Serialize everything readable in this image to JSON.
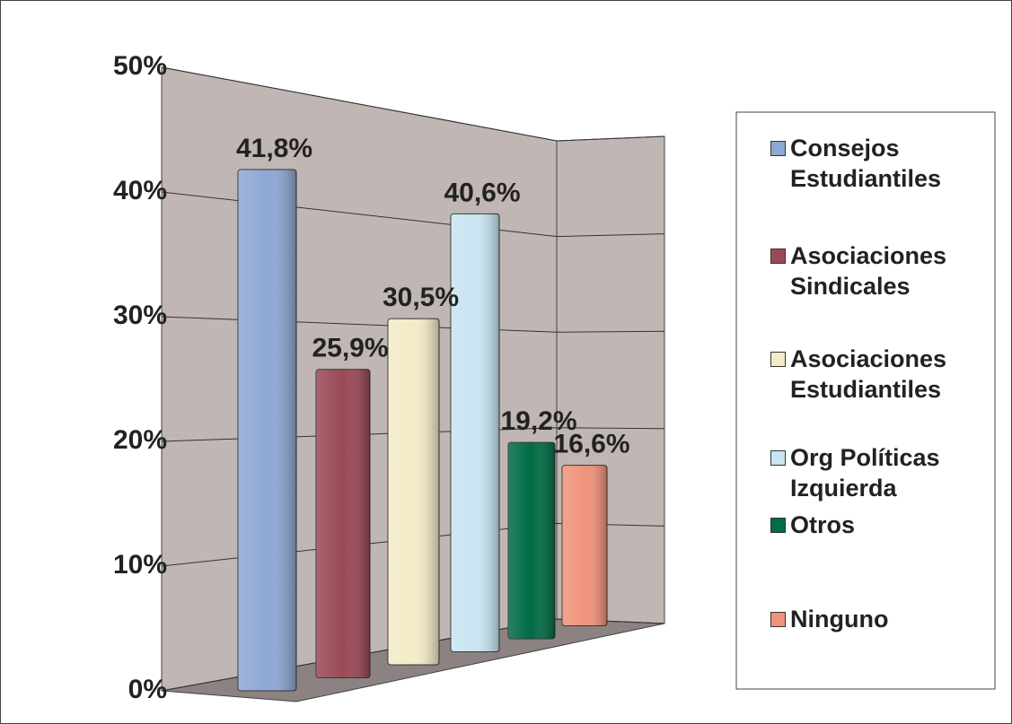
{
  "chart_data": {
    "type": "bar3d",
    "categories": [
      "Consejos Estudiantiles",
      "Asociaciones Sindicales",
      "Asociaciones Estudiantiles",
      "Org Políticas Izquierda",
      "Otros",
      "Ninguno"
    ],
    "values": [
      41.8,
      25.9,
      30.5,
      40.6,
      19.2,
      16.6
    ],
    "value_labels": [
      "41,8%",
      "25,9%",
      "30,5%",
      "40,6%",
      "19,2%",
      "16,6%"
    ],
    "colors": [
      "#8ea8d3",
      "#9a4956",
      "#f4ebc6",
      "#c8e5f1",
      "#006b44",
      "#f0937a"
    ],
    "ylim": [
      0,
      50
    ],
    "yticks": [
      {
        "value": 0,
        "label": "0%"
      },
      {
        "value": 10,
        "label": "10%"
      },
      {
        "value": 20,
        "label": "20%"
      },
      {
        "value": 30,
        "label": "30%"
      },
      {
        "value": 40,
        "label": "40%"
      },
      {
        "value": 50,
        "label": "50%"
      }
    ],
    "grid": true,
    "legend": "right"
  }
}
